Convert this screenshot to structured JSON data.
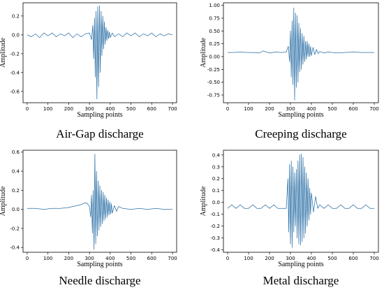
{
  "chart_data": [
    {
      "type": "line",
      "caption": "Air-Gap discharge",
      "xlabel": "Sampling points",
      "ylabel": "Amplitude",
      "xlim": [
        -20,
        720
      ],
      "ylim": [
        -0.72,
        0.34
      ],
      "xticks": [
        0,
        100,
        200,
        300,
        400,
        500,
        600,
        700
      ],
      "yticks": [
        0.2,
        0.0,
        -0.2,
        -0.4,
        -0.6
      ],
      "ytick_labels": [
        "0.2",
        "0.0",
        "-0.2",
        "-0.4",
        "-0.6"
      ],
      "series": [
        {
          "color": "#2a6ea5",
          "x": [
            0,
            20,
            40,
            60,
            80,
            100,
            120,
            140,
            160,
            180,
            200,
            220,
            240,
            260,
            280,
            300,
            310,
            316,
            320,
            324,
            328,
            332,
            336,
            340,
            344,
            348,
            352,
            356,
            360,
            364,
            368,
            372,
            376,
            380,
            384,
            388,
            392,
            396,
            400,
            410,
            420,
            440,
            460,
            480,
            500,
            520,
            540,
            560,
            580,
            600,
            620,
            640,
            660,
            680,
            700
          ],
          "values": [
            0.0,
            -0.02,
            0.01,
            -0.03,
            0.02,
            -0.01,
            0.02,
            -0.02,
            0.01,
            -0.01,
            0.02,
            -0.03,
            0.01,
            -0.02,
            0.01,
            0.02,
            -0.05,
            0.1,
            -0.25,
            0.18,
            -0.45,
            0.25,
            -0.68,
            0.3,
            -0.55,
            0.31,
            -0.4,
            0.25,
            -0.22,
            0.2,
            -0.15,
            0.14,
            -0.1,
            0.08,
            -0.06,
            0.05,
            -0.04,
            0.03,
            -0.03,
            0.02,
            -0.02,
            0.01,
            -0.02,
            0.02,
            -0.01,
            0.02,
            -0.02,
            0.01,
            -0.01,
            0.02,
            -0.02,
            0.01,
            -0.01,
            0.01,
            0.0
          ]
        }
      ]
    },
    {
      "type": "line",
      "caption": "Creeping discharge",
      "xlabel": "Sampling points",
      "ylabel": "Amplitude",
      "xlim": [
        -20,
        720
      ],
      "ylim": [
        -0.9,
        1.05
      ],
      "xticks": [
        0,
        100,
        200,
        300,
        400,
        500,
        600,
        700
      ],
      "yticks": [
        1.0,
        0.75,
        0.5,
        0.25,
        0.0,
        -0.25,
        -0.5,
        -0.75
      ],
      "ytick_labels": [
        "1.00",
        "0.75",
        "0.50",
        "0.25",
        "0.00",
        "-0.25",
        "-0.50",
        "-0.75"
      ],
      "series": [
        {
          "color": "#2a6ea5",
          "x": [
            0,
            30,
            60,
            90,
            120,
            150,
            170,
            200,
            230,
            260,
            280,
            290,
            296,
            300,
            304,
            308,
            312,
            316,
            320,
            324,
            328,
            332,
            336,
            340,
            344,
            348,
            352,
            356,
            360,
            364,
            368,
            372,
            376,
            380,
            384,
            388,
            392,
            396,
            400,
            408,
            416,
            424,
            432,
            440,
            460,
            480,
            500,
            530,
            560,
            600,
            640,
            680,
            700
          ],
          "values": [
            0.08,
            0.08,
            0.09,
            0.08,
            0.08,
            0.07,
            0.11,
            0.07,
            0.09,
            0.08,
            0.09,
            0.2,
            -0.1,
            0.5,
            -0.4,
            0.7,
            -0.55,
            0.95,
            -0.85,
            0.85,
            -0.6,
            0.8,
            -0.5,
            0.65,
            -0.3,
            0.55,
            -0.25,
            0.45,
            -0.15,
            0.4,
            -0.1,
            0.3,
            -0.05,
            0.3,
            0.0,
            0.25,
            0.0,
            0.2,
            0.02,
            0.18,
            0.04,
            0.14,
            0.06,
            0.1,
            0.07,
            0.09,
            0.08,
            0.07,
            0.08,
            0.09,
            0.08,
            0.08,
            0.08
          ]
        }
      ]
    },
    {
      "type": "line",
      "caption": "Needle discharge",
      "xlabel": "Sampling points",
      "ylabel": "Amplitude",
      "xlim": [
        -20,
        720
      ],
      "ylim": [
        -0.45,
        0.62
      ],
      "xticks": [
        0,
        100,
        200,
        300,
        400,
        500,
        600,
        700
      ],
      "yticks": [
        0.6,
        0.4,
        0.2,
        0.0,
        -0.2,
        -0.4
      ],
      "ytick_labels": [
        "0.6",
        "0.4",
        "0.2",
        "0.0",
        "-0.2",
        "-0.4"
      ],
      "series": [
        {
          "color": "#2a6ea5",
          "x": [
            0,
            40,
            80,
            120,
            160,
            200,
            220,
            240,
            260,
            280,
            290,
            300,
            306,
            310,
            314,
            318,
            322,
            326,
            330,
            334,
            338,
            342,
            346,
            350,
            354,
            358,
            362,
            366,
            370,
            374,
            378,
            382,
            386,
            390,
            394,
            398,
            402,
            406,
            410,
            420,
            430,
            440,
            460,
            500,
            540,
            580,
            620,
            660,
            700
          ],
          "values": [
            0.01,
            0.01,
            0.0,
            0.01,
            0.01,
            0.02,
            0.03,
            0.04,
            0.05,
            0.07,
            0.06,
            0.03,
            -0.08,
            0.15,
            -0.25,
            0.2,
            -0.42,
            0.58,
            -0.36,
            0.4,
            -0.28,
            0.3,
            -0.22,
            0.25,
            -0.18,
            0.2,
            -0.15,
            0.18,
            -0.12,
            0.15,
            -0.1,
            0.12,
            -0.08,
            0.1,
            -0.06,
            0.08,
            -0.05,
            0.06,
            -0.04,
            0.04,
            -0.02,
            0.03,
            0.01,
            0.0,
            0.01,
            0.0,
            0.01,
            0.0,
            0.0
          ]
        }
      ]
    },
    {
      "type": "line",
      "caption": "Metal discharge",
      "xlabel": "Sampling points",
      "ylabel": "Amplitude",
      "xlim": [
        -20,
        720
      ],
      "ylim": [
        -0.42,
        0.44
      ],
      "xticks": [
        0,
        100,
        200,
        300,
        400,
        500,
        600,
        700
      ],
      "yticks": [
        0.4,
        0.3,
        0.2,
        0.1,
        0.0,
        -0.1,
        -0.2,
        -0.3,
        -0.4
      ],
      "ytick_labels": [
        "0.4",
        "0.3",
        "0.2",
        "0.1",
        "0.0",
        "-0.1",
        "-0.2",
        "-0.3",
        "-0.4"
      ],
      "series": [
        {
          "color": "#2a6ea5",
          "x": [
            0,
            20,
            40,
            60,
            80,
            100,
            120,
            140,
            160,
            180,
            200,
            220,
            240,
            260,
            280,
            288,
            292,
            296,
            300,
            304,
            308,
            312,
            316,
            320,
            324,
            328,
            332,
            336,
            340,
            344,
            348,
            352,
            356,
            360,
            364,
            368,
            372,
            376,
            380,
            384,
            388,
            392,
            396,
            400,
            410,
            420,
            430,
            440,
            460,
            480,
            500,
            520,
            540,
            560,
            580,
            600,
            620,
            640,
            660,
            680,
            700
          ],
          "values": [
            -0.05,
            -0.02,
            -0.05,
            -0.02,
            -0.05,
            -0.05,
            -0.02,
            -0.05,
            -0.05,
            -0.02,
            -0.05,
            -0.02,
            -0.05,
            -0.05,
            -0.05,
            0.2,
            -0.25,
            0.32,
            -0.35,
            0.35,
            -0.38,
            0.3,
            -0.25,
            0.25,
            -0.2,
            0.28,
            -0.3,
            0.35,
            -0.35,
            0.4,
            -0.36,
            0.41,
            -0.33,
            0.38,
            -0.3,
            0.3,
            -0.26,
            0.25,
            -0.2,
            0.2,
            -0.15,
            0.12,
            -0.1,
            0.08,
            -0.08,
            0.05,
            -0.05,
            -0.02,
            -0.05,
            -0.02,
            -0.05,
            -0.05,
            -0.02,
            -0.05,
            -0.05,
            -0.02,
            -0.05,
            -0.05,
            -0.02,
            -0.05,
            -0.05
          ]
        }
      ]
    }
  ]
}
